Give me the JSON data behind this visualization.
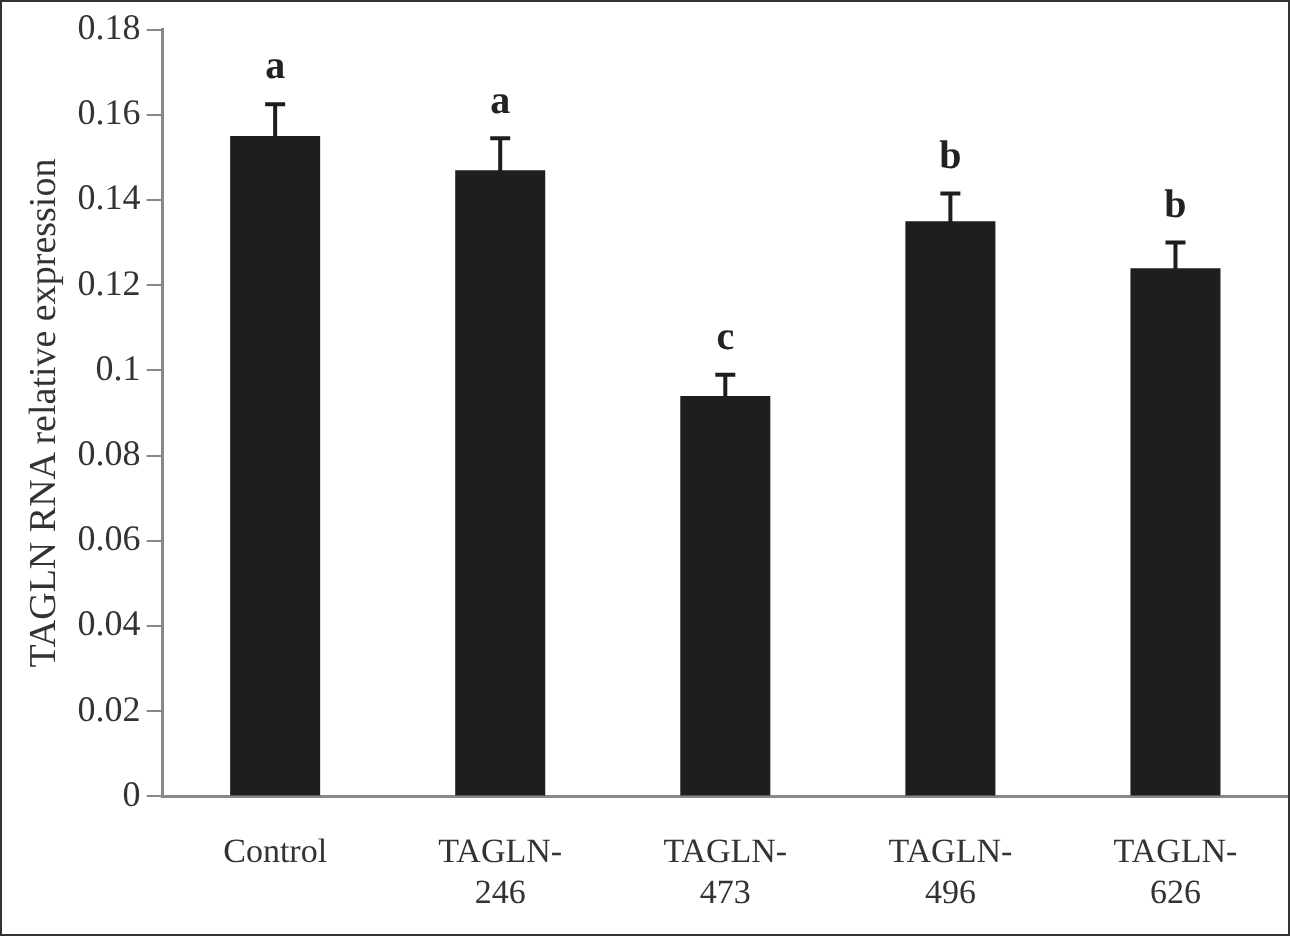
{
  "chart_data": {
    "type": "bar",
    "ylabel": "TAGLN RNA relative expression",
    "categories": [
      "Control",
      "TAGLN-246",
      "TAGLN-473",
      "TAGLN-496",
      "TAGLN-626"
    ],
    "values": [
      0.155,
      0.147,
      0.094,
      0.135,
      0.124
    ],
    "errors": [
      0.0075,
      0.0075,
      0.005,
      0.0065,
      0.006
    ],
    "color": "#1e1e1e",
    "ylim": [
      0,
      0.18
    ],
    "yticks": [
      0,
      0.02,
      0.04,
      0.06,
      0.08,
      0.1,
      0.12,
      0.14,
      0.16,
      0.18
    ],
    "grid": false,
    "legend": false,
    "annotations": [
      {
        "text": "a",
        "x": "Control",
        "y": 0.1625
      },
      {
        "text": "a",
        "x": "TAGLN-246",
        "y": 0.1545
      },
      {
        "text": "c",
        "x": "TAGLN-473",
        "y": 0.099
      },
      {
        "text": "b",
        "x": "TAGLN-496",
        "y": 0.1415
      },
      {
        "text": "b",
        "x": "TAGLN-626",
        "y": 0.13
      }
    ]
  }
}
